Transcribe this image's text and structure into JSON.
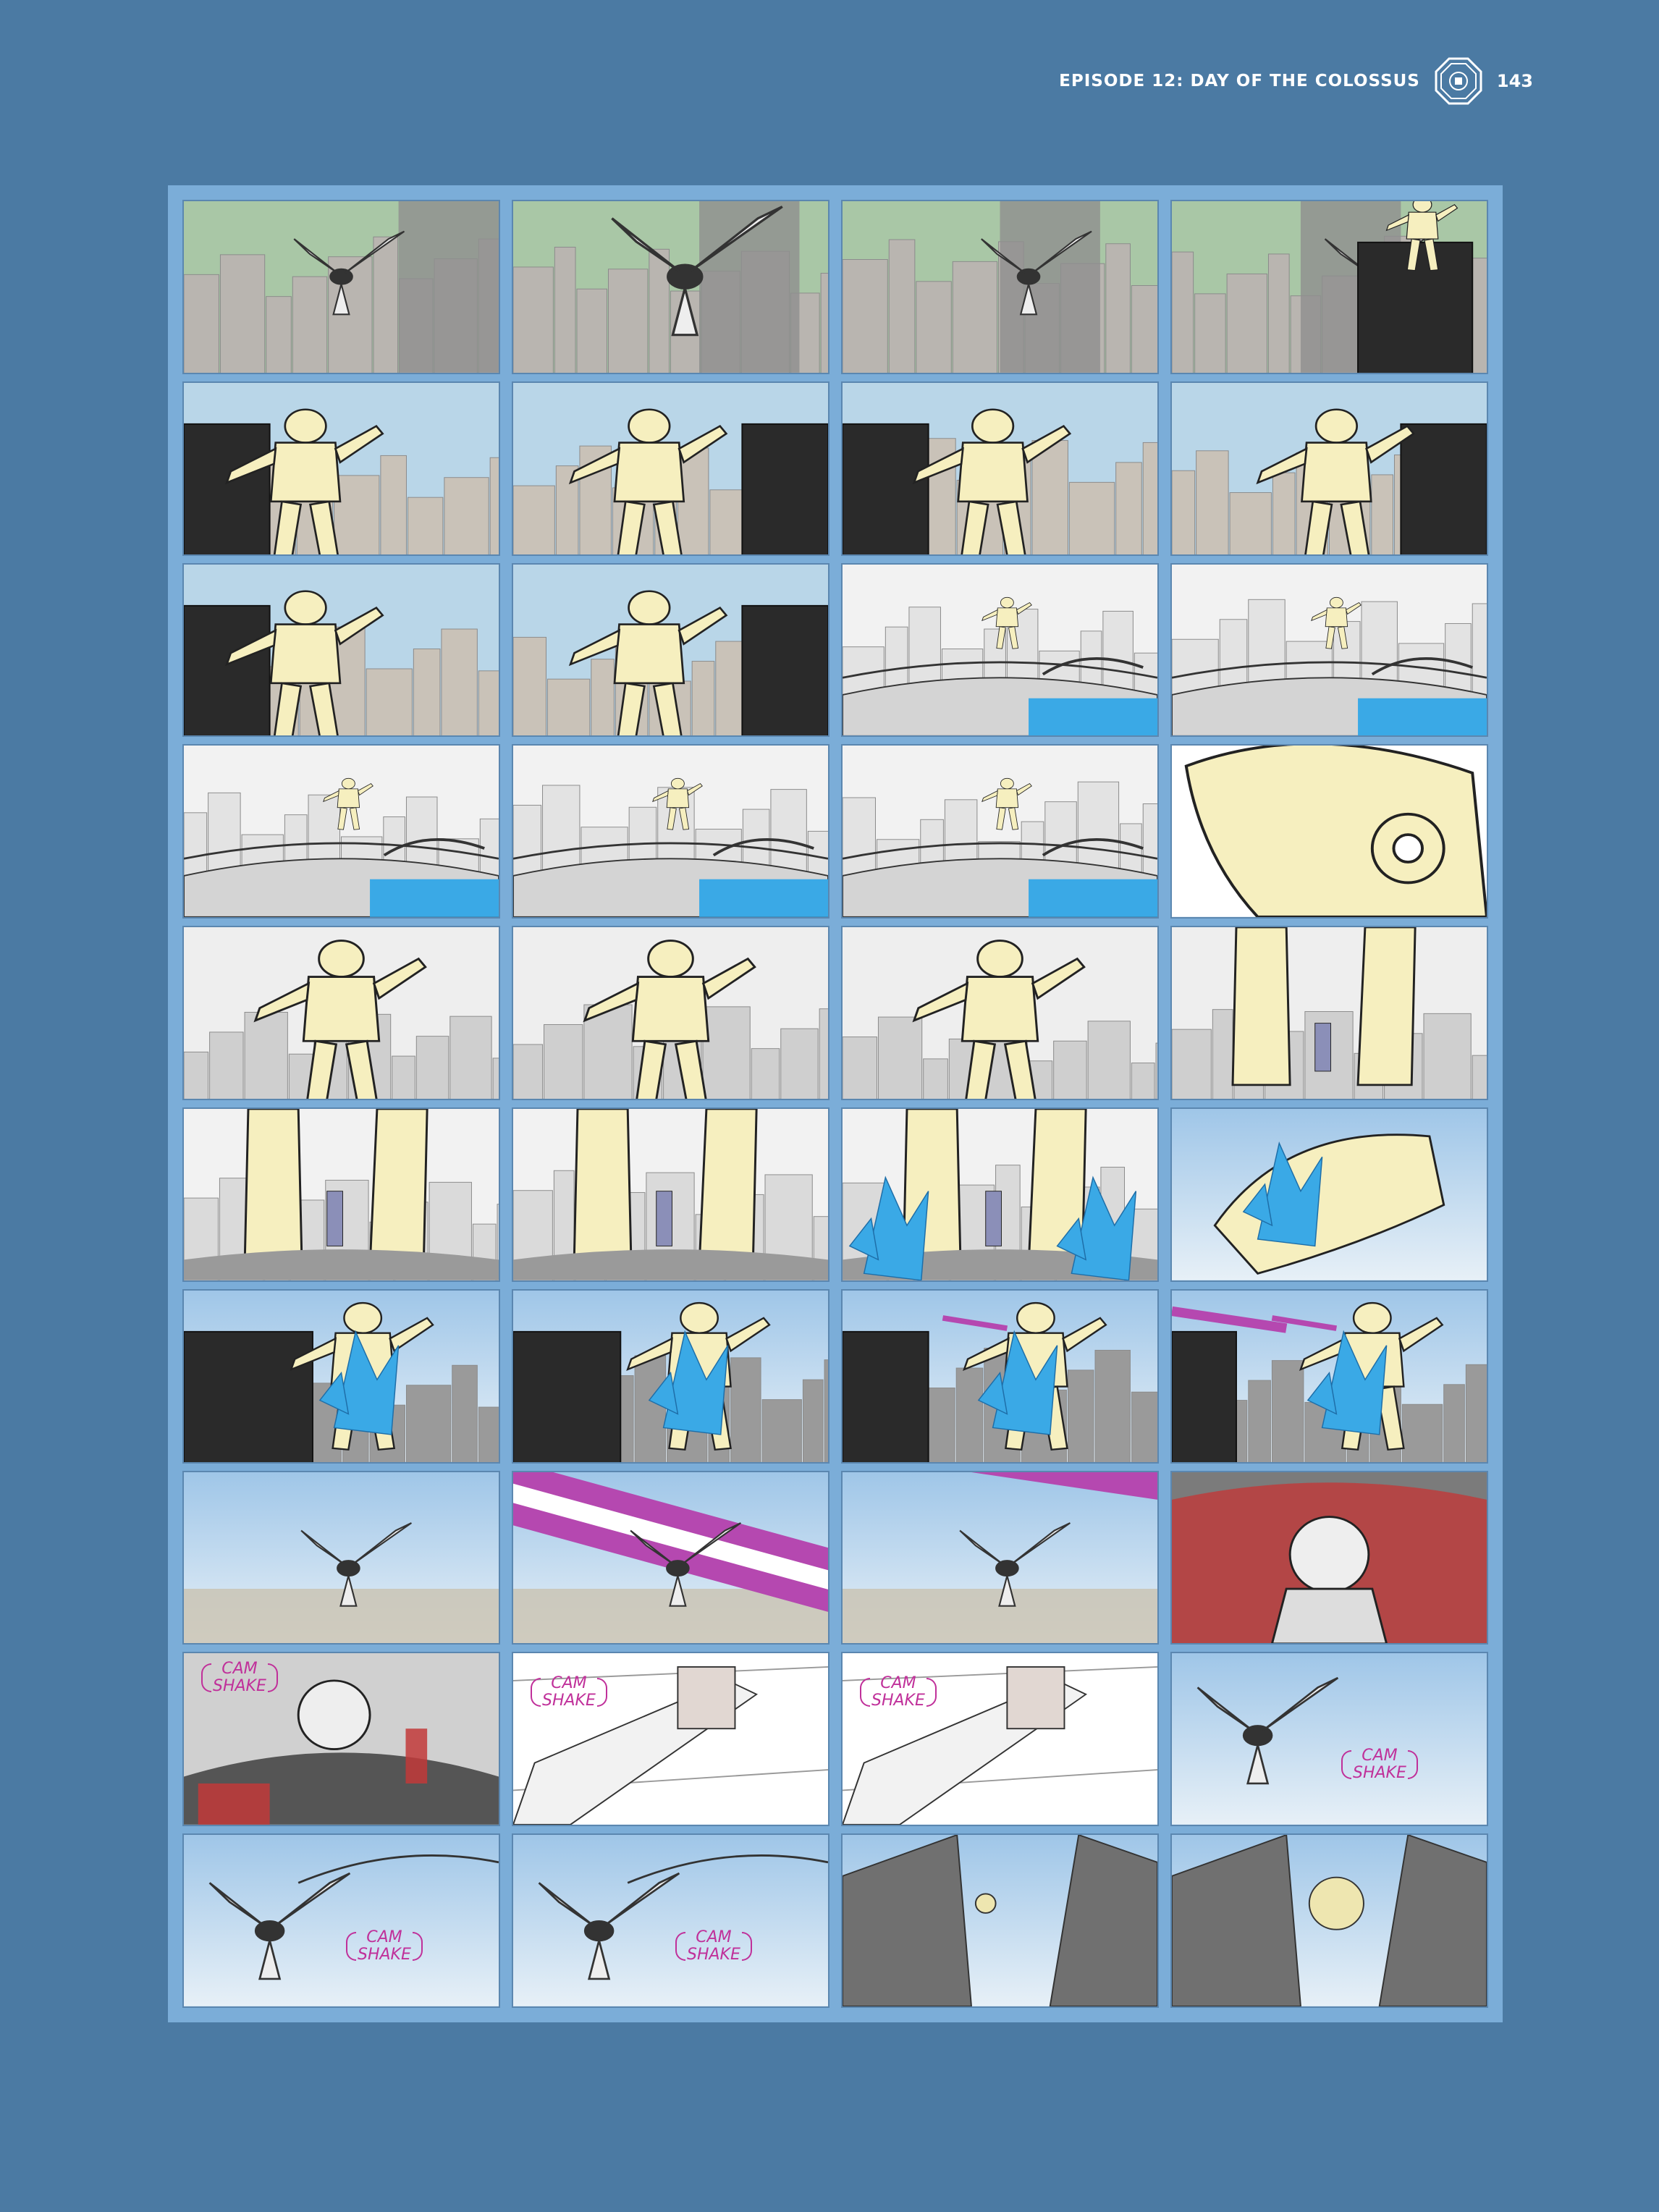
{
  "header": {
    "title": "EPISODE 12: DAY OF THE COLOSSUS",
    "page_number": "143",
    "logo_icon": "octagon-emblem-icon"
  },
  "colors": {
    "background": "#4b7aa3",
    "frame": "#7badd8",
    "robot": "#f6efbf",
    "water": "#3aa9e6",
    "beam": "#b548b0",
    "annotation": "#c0309a"
  },
  "storyboard": {
    "rows": 10,
    "columns": 4,
    "annotations": [
      {
        "panel": 33,
        "text_line1": "CAM",
        "text_line2": "SHAKE"
      },
      {
        "panel": 34,
        "text_line1": "CAM",
        "text_line2": "SHAKE"
      },
      {
        "panel": 35,
        "text_line1": "CAM",
        "text_line2": "SHAKE"
      },
      {
        "panel": 36,
        "text_line1": "CAM",
        "text_line2": "SHAKE"
      },
      {
        "panel": 37,
        "text_line1": "CAM",
        "text_line2": "SHAKE"
      },
      {
        "panel": 38,
        "text_line1": "CAM",
        "text_line2": "SHAKE"
      }
    ]
  }
}
